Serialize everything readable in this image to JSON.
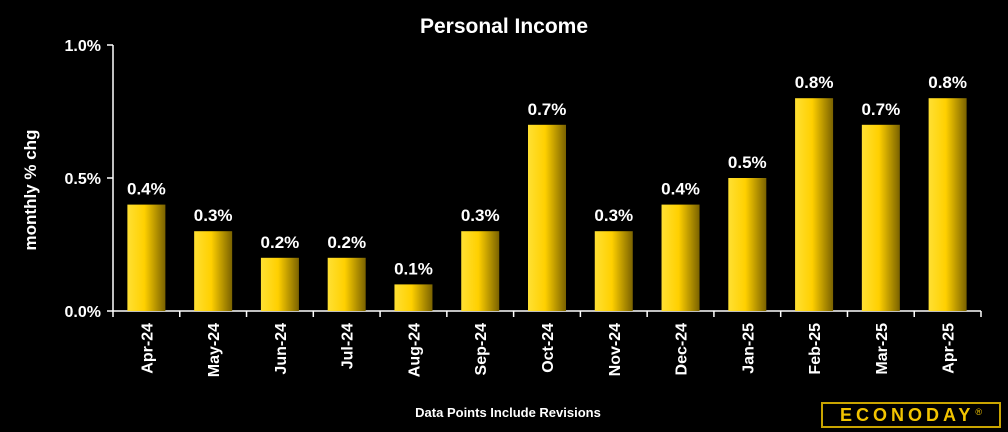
{
  "chart_data": {
    "type": "bar",
    "title": "Personal Income",
    "ylabel": "monthly % chg",
    "xlabel": "Data Points Include Revisions",
    "categories": [
      "Apr-24",
      "May-24",
      "Jun-24",
      "Jul-24",
      "Aug-24",
      "Sep-24",
      "Oct-24",
      "Nov-24",
      "Dec-24",
      "Jan-25",
      "Feb-25",
      "Mar-25",
      "Apr-25"
    ],
    "values": [
      0.4,
      0.3,
      0.2,
      0.2,
      0.1,
      0.3,
      0.7,
      0.3,
      0.4,
      0.5,
      0.8,
      0.7,
      0.8
    ],
    "value_labels": [
      "0.4%",
      "0.3%",
      "0.2%",
      "0.2%",
      "0.1%",
      "0.3%",
      "0.7%",
      "0.3%",
      "0.4%",
      "0.5%",
      "0.8%",
      "0.7%",
      "0.8%"
    ],
    "ylim": [
      0,
      1.0
    ],
    "yticks": [
      0,
      0.5,
      1.0
    ],
    "ytick_labels": [
      "0.0%",
      "0.5%",
      "1.0%"
    ],
    "grid": false,
    "legend": "none",
    "colors": {
      "bar_light": "#ffd700",
      "bar_dark": "#8a6f00",
      "background": "#000000",
      "text": "#ffffff",
      "axis": "#ffffff"
    }
  },
  "branding": {
    "logo": "ECONODAY",
    "logo_mark": "®"
  }
}
